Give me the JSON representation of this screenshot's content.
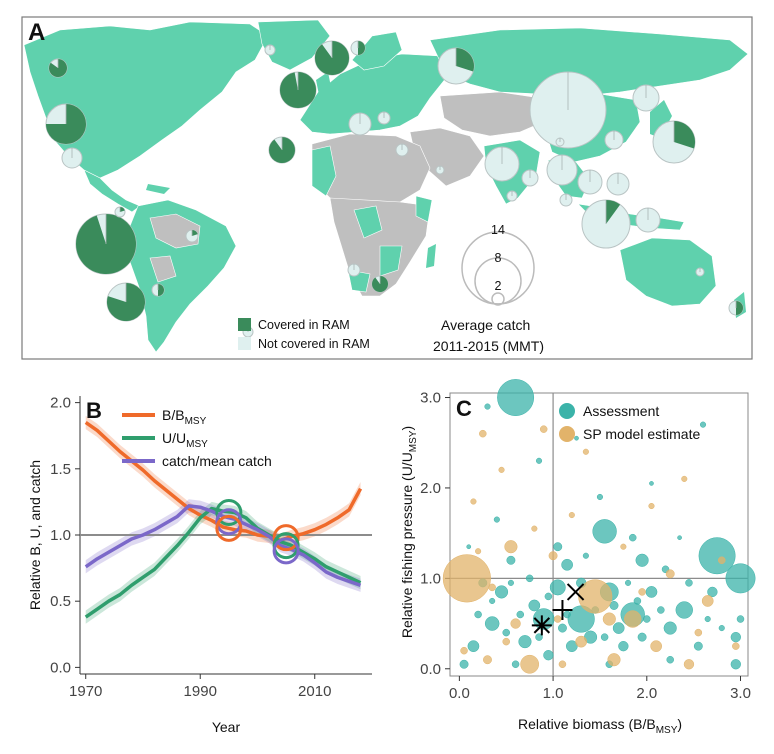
{
  "colors": {
    "ocean": "#ffffff",
    "land_ram": "#5fd1ad",
    "land_none": "#bfbfbf",
    "covered": "#3a8b5b",
    "not_covered": "#dff0ef",
    "b_orange": "#ef6a2a",
    "u_green": "#2f9e6d",
    "c_purple": "#7b68c9",
    "teal": "#3bb3a9",
    "sand": "#e2b36a",
    "grey_line": "#8c8c8c"
  },
  "panel_a": {
    "label": "A",
    "legend_covered": "Covered in RAM",
    "legend_not_covered": "Not covered in RAM",
    "size_title_1": "Average catch",
    "size_title_2": "2011-2015 (MMT)",
    "size_values": [
      "14",
      "8",
      "2"
    ]
  },
  "chart_data": [
    {
      "type": "line",
      "panel": "B",
      "ylabel": "Relative B, U, and catch",
      "xlabel": "Year",
      "xlim": [
        1969,
        2020
      ],
      "ylim": [
        -0.05,
        2.05
      ],
      "xticks": [
        1970,
        1990,
        2010
      ],
      "xtick_labels": [
        "1970",
        "1990",
        "2010"
      ],
      "yticks": [
        0.0,
        0.5,
        1.0,
        1.5,
        2.0
      ],
      "ytick_labels": [
        "0.0",
        "0.5",
        "1.0",
        "1.5",
        "2.0"
      ],
      "reference_y": 1.0,
      "legend_parts": [
        {
          "main": "B/B",
          "sub": "MSY"
        },
        {
          "main": "U/U",
          "sub": "MSY"
        },
        {
          "main": "catch/mean catch",
          "sub": ""
        }
      ],
      "series": [
        {
          "name": "B/BMSY",
          "color": "#ef6a2a",
          "x": [
            1970,
            1972,
            1974,
            1976,
            1978,
            1980,
            1982,
            1984,
            1986,
            1988,
            1990,
            1992,
            1994,
            1996,
            1998,
            2000,
            2002,
            2004,
            2006,
            2008,
            2010,
            2012,
            2014,
            2016,
            2018
          ],
          "y": [
            1.85,
            1.79,
            1.71,
            1.63,
            1.56,
            1.49,
            1.41,
            1.34,
            1.27,
            1.2,
            1.15,
            1.11,
            1.06,
            1.04,
            1.03,
            1.0,
            0.99,
            0.96,
            0.99,
            1.01,
            1.04,
            1.08,
            1.13,
            1.19,
            1.35
          ]
        },
        {
          "name": "U/UMSY",
          "color": "#2f9e6d",
          "x": [
            1970,
            1972,
            1974,
            1976,
            1978,
            1980,
            1982,
            1984,
            1986,
            1988,
            1990,
            1992,
            1994,
            1996,
            1998,
            2000,
            2002,
            2004,
            2006,
            2008,
            2010,
            2012,
            2014,
            2016,
            2018
          ],
          "y": [
            0.38,
            0.44,
            0.5,
            0.55,
            0.62,
            0.68,
            0.74,
            0.83,
            0.92,
            1.02,
            1.13,
            1.2,
            1.18,
            1.17,
            1.13,
            1.05,
            1.0,
            0.95,
            0.92,
            0.87,
            0.82,
            0.76,
            0.72,
            0.68,
            0.64
          ]
        },
        {
          "name": "catch/mean catch",
          "color": "#7b68c9",
          "x": [
            1970,
            1972,
            1974,
            1976,
            1978,
            1980,
            1982,
            1984,
            1986,
            1988,
            1990,
            1992,
            1994,
            1996,
            1998,
            2000,
            2002,
            2004,
            2006,
            2008,
            2010,
            2012,
            2014,
            2016,
            2018
          ],
          "y": [
            0.76,
            0.82,
            0.87,
            0.92,
            0.97,
            1.0,
            1.04,
            1.09,
            1.14,
            1.22,
            1.21,
            1.18,
            1.14,
            1.12,
            1.08,
            1.04,
            0.99,
            0.92,
            0.89,
            0.85,
            0.79,
            0.72,
            0.68,
            0.65,
            0.62
          ]
        }
      ],
      "highlight_circles": [
        {
          "x": 1995,
          "y": 1.17,
          "color": "#2f9e6d"
        },
        {
          "x": 1995,
          "y": 1.1,
          "color": "#7b68c9"
        },
        {
          "x": 1995,
          "y": 1.05,
          "color": "#ef6a2a"
        },
        {
          "x": 2005,
          "y": 0.98,
          "color": "#ef6a2a"
        },
        {
          "x": 2005,
          "y": 0.92,
          "color": "#2f9e6d"
        },
        {
          "x": 2005,
          "y": 0.88,
          "color": "#7b68c9"
        }
      ]
    },
    {
      "type": "scatter",
      "panel": "C",
      "xlabel_main": "Relative biomass (B/B",
      "xlabel_sub": "MSY",
      "xlabel_end": ")",
      "ylabel_main": "Relative fishing pressure (U/U",
      "ylabel_sub": "MSY",
      "ylabel_end": ")",
      "xlim": [
        -0.1,
        3.08
      ],
      "ylim": [
        -0.08,
        3.05
      ],
      "xticks": [
        0.0,
        1.0,
        2.0,
        3.0
      ],
      "xtick_labels": [
        "0.0",
        "1.0",
        "2.0",
        "3.0"
      ],
      "yticks": [
        0.0,
        1.0,
        2.0,
        3.0
      ],
      "ytick_labels": [
        "0.0",
        "1.0",
        "2.0",
        "3.0"
      ],
      "reference_x": 1.0,
      "reference_y": 1.0,
      "series": [
        {
          "name": "Assessment",
          "color": "#3bb3a9",
          "points": [
            [
              0.6,
              3.0,
              2.6
            ],
            [
              2.75,
              1.25,
              2.6
            ],
            [
              3.0,
              1.0,
              2.1
            ],
            [
              1.55,
              1.52,
              1.7
            ],
            [
              0.9,
              0.55,
              1.5
            ],
            [
              1.3,
              0.55,
              1.9
            ],
            [
              1.85,
              0.6,
              1.7
            ],
            [
              1.6,
              0.85,
              1.3
            ],
            [
              2.4,
              0.65,
              1.2
            ],
            [
              1.05,
              0.9,
              1.1
            ],
            [
              0.35,
              0.5,
              1.0
            ],
            [
              0.45,
              0.85,
              0.9
            ],
            [
              1.95,
              1.2,
              0.9
            ],
            [
              0.7,
              0.3,
              0.9
            ],
            [
              1.2,
              0.25,
              0.8
            ],
            [
              2.25,
              0.45,
              0.9
            ],
            [
              2.7,
              0.85,
              0.7
            ],
            [
              0.8,
              0.7,
              0.8
            ],
            [
              1.4,
              0.35,
              0.9
            ],
            [
              1.75,
              0.25,
              0.7
            ],
            [
              0.15,
              0.25,
              0.8
            ],
            [
              2.95,
              0.35,
              0.7
            ],
            [
              1.15,
              1.15,
              0.8
            ],
            [
              2.05,
              0.85,
              0.8
            ],
            [
              0.55,
              1.2,
              0.6
            ],
            [
              1.7,
              0.45,
              0.8
            ],
            [
              0.95,
              0.15,
              0.7
            ],
            [
              2.55,
              0.25,
              0.6
            ],
            [
              1.3,
              0.95,
              0.7
            ],
            [
              0.25,
              0.95,
              0.6
            ],
            [
              1.85,
              1.45,
              0.5
            ],
            [
              1.05,
              1.35,
              0.6
            ],
            [
              2.2,
              1.1,
              0.5
            ],
            [
              0.4,
              1.65,
              0.4
            ],
            [
              1.5,
              1.9,
              0.4
            ],
            [
              2.05,
              2.05,
              0.3
            ],
            [
              0.85,
              2.3,
              0.4
            ],
            [
              1.25,
              2.55,
              0.3
            ],
            [
              2.6,
              2.7,
              0.4
            ],
            [
              0.3,
              2.9,
              0.4
            ],
            [
              2.95,
              0.05,
              0.7
            ],
            [
              0.05,
              0.05,
              0.6
            ],
            [
              1.6,
              0.05,
              0.5
            ],
            [
              2.25,
              0.1,
              0.5
            ],
            [
              0.6,
              0.05,
              0.5
            ],
            [
              3.0,
              0.55,
              0.5
            ],
            [
              1.95,
              0.35,
              0.6
            ],
            [
              0.75,
              1.0,
              0.5
            ],
            [
              1.1,
              0.45,
              0.6
            ],
            [
              2.45,
              0.95,
              0.5
            ],
            [
              0.5,
              0.4,
              0.5
            ],
            [
              1.65,
              0.7,
              0.6
            ],
            [
              2.8,
              0.45,
              0.4
            ],
            [
              0.2,
              0.6,
              0.5
            ],
            [
              1.35,
              1.25,
              0.4
            ],
            [
              2.15,
              0.65,
              0.5
            ],
            [
              0.95,
              0.8,
              0.5
            ],
            [
              1.8,
              0.95,
              0.4
            ],
            [
              0.65,
              0.6,
              0.5
            ],
            [
              2.35,
              1.45,
              0.3
            ],
            [
              0.1,
              1.35,
              0.3
            ],
            [
              1.45,
              0.65,
              0.5
            ],
            [
              2.0,
              0.55,
              0.5
            ],
            [
              1.15,
              0.6,
              0.5
            ],
            [
              0.85,
              0.35,
              0.5
            ],
            [
              2.65,
              0.55,
              0.4
            ],
            [
              1.55,
              0.35,
              0.5
            ],
            [
              0.35,
              0.75,
              0.4
            ],
            [
              1.9,
              0.75,
              0.5
            ],
            [
              0.55,
              0.95,
              0.4
            ]
          ]
        },
        {
          "name": "SP model estimate",
          "color": "#e2b36a",
          "points": [
            [
              0.08,
              1.0,
              3.4
            ],
            [
              1.45,
              0.8,
              2.4
            ],
            [
              0.75,
              0.05,
              1.3
            ],
            [
              1.85,
              0.55,
              1.2
            ],
            [
              1.65,
              0.1,
              0.9
            ],
            [
              0.55,
              1.35,
              0.9
            ],
            [
              2.1,
              0.25,
              0.8
            ],
            [
              1.3,
              0.3,
              0.8
            ],
            [
              2.65,
              0.75,
              0.8
            ],
            [
              0.3,
              0.1,
              0.6
            ],
            [
              2.45,
              0.05,
              0.7
            ],
            [
              1.0,
              1.25,
              0.6
            ],
            [
              1.6,
              0.55,
              0.9
            ],
            [
              0.6,
              0.5,
              0.7
            ],
            [
              2.25,
              1.05,
              0.6
            ],
            [
              0.25,
              2.6,
              0.5
            ],
            [
              0.45,
              2.2,
              0.4
            ],
            [
              0.9,
              2.65,
              0.5
            ],
            [
              1.35,
              2.4,
              0.4
            ],
            [
              2.05,
              1.8,
              0.4
            ],
            [
              2.8,
              1.2,
              0.5
            ],
            [
              0.15,
              1.85,
              0.4
            ],
            [
              1.1,
              0.05,
              0.5
            ],
            [
              2.95,
              0.25,
              0.5
            ],
            [
              0.05,
              0.2,
              0.5
            ],
            [
              0.35,
              0.9,
              0.5
            ],
            [
              1.2,
              1.7,
              0.4
            ],
            [
              1.75,
              1.35,
              0.4
            ],
            [
              2.4,
              2.1,
              0.4
            ],
            [
              0.8,
              1.55,
              0.4
            ],
            [
              1.95,
              0.85,
              0.5
            ],
            [
              0.5,
              0.3,
              0.5
            ],
            [
              2.55,
              0.4,
              0.5
            ],
            [
              1.05,
              0.55,
              0.5
            ],
            [
              0.2,
              1.3,
              0.4
            ]
          ]
        }
      ],
      "markers": [
        {
          "symbol": "asterisk",
          "x": 0.88,
          "y": 0.48
        },
        {
          "symbol": "plus",
          "x": 1.1,
          "y": 0.65
        },
        {
          "symbol": "x",
          "x": 1.24,
          "y": 0.85
        }
      ]
    }
  ],
  "panel_b_label": "B",
  "panel_c_label": "C",
  "panel_c_legend": [
    "Assessment",
    "SP model estimate"
  ]
}
